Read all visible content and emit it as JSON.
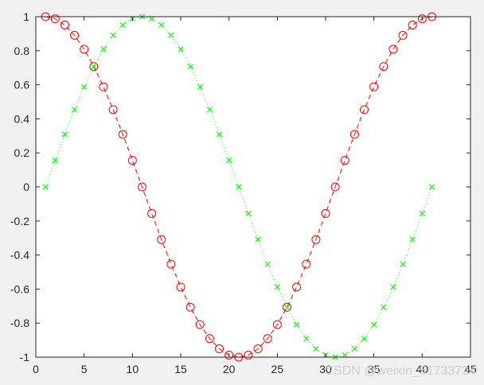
{
  "chart_data": {
    "type": "line",
    "title": "",
    "xlabel": "",
    "ylabel": "",
    "xlim": [
      0,
      45
    ],
    "ylim": [
      -1,
      1
    ],
    "xticks": [
      0,
      5,
      10,
      15,
      20,
      25,
      30,
      35,
      40,
      45
    ],
    "yticks": [
      -1,
      -0.8,
      -0.6,
      -0.4,
      -0.2,
      0,
      0.2,
      0.4,
      0.6,
      0.8,
      1
    ],
    "grid": false,
    "x": [
      1,
      2,
      3,
      4,
      5,
      6,
      7,
      8,
      9,
      10,
      11,
      12,
      13,
      14,
      15,
      16,
      17,
      18,
      19,
      20,
      21,
      22,
      23,
      24,
      25,
      26,
      27,
      28,
      29,
      30,
      31,
      32,
      33,
      34,
      35,
      36,
      37,
      38,
      39,
      40,
      41
    ],
    "series": [
      {
        "color": "#ff0000",
        "linestyle": "dashed",
        "marker": "circle",
        "values": [
          1,
          0.988,
          0.951,
          0.891,
          0.809,
          0.707,
          0.588,
          0.454,
          0.309,
          0.156,
          0,
          -0.156,
          -0.309,
          -0.454,
          -0.588,
          -0.707,
          -0.809,
          -0.891,
          -0.951,
          -0.988,
          -1,
          -0.988,
          -0.951,
          -0.891,
          -0.809,
          -0.707,
          -0.588,
          -0.454,
          -0.309,
          -0.156,
          0,
          0.156,
          0.309,
          0.454,
          0.588,
          0.707,
          0.809,
          0.891,
          0.951,
          0.988,
          1
        ]
      },
      {
        "color": "#00ff00",
        "linestyle": "dotted",
        "marker": "x",
        "values": [
          0,
          0.156,
          0.309,
          0.454,
          0.588,
          0.707,
          0.809,
          0.891,
          0.951,
          0.988,
          1,
          0.988,
          0.951,
          0.891,
          0.809,
          0.707,
          0.588,
          0.454,
          0.309,
          0.156,
          0,
          -0.156,
          -0.309,
          -0.454,
          -0.588,
          -0.707,
          -0.809,
          -0.891,
          -0.951,
          -0.988,
          -1,
          -0.988,
          -0.951,
          -0.891,
          -0.809,
          -0.707,
          -0.588,
          -0.454,
          -0.309,
          -0.156,
          0
        ]
      }
    ]
  },
  "watermark": "CSDN @weixin_51733734"
}
